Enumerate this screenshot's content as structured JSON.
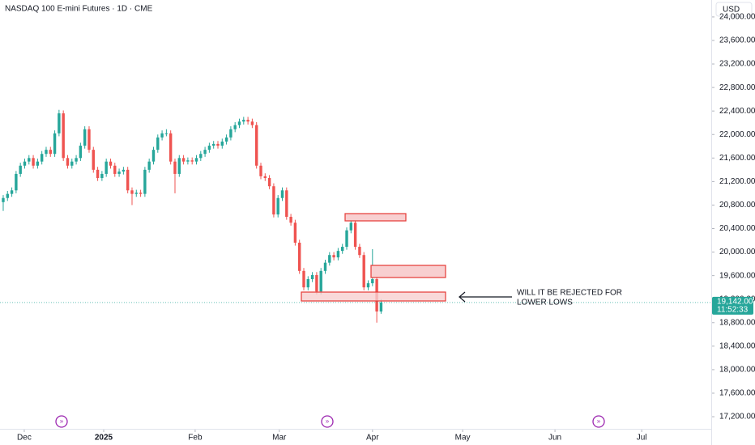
{
  "chart_data": {
    "type": "candlestick",
    "title": "NASDAQ 100 E-mini Futures · 1D · CME",
    "currency": "USD",
    "up_color": "#26a69a",
    "down_color": "#ef5350",
    "open": [
      20850,
      20920,
      20990,
      21050,
      21330,
      21470,
      21540,
      21600,
      21470,
      21540,
      21670,
      21740,
      21670,
      22020,
      22360,
      21600,
      21470,
      21540,
      21600,
      21810,
      22090,
      21740,
      21400,
      21260,
      21330,
      21540,
      21470,
      21330,
      21370,
      21400,
      21050,
      20990,
      21010,
      20990,
      21400,
      21540,
      21740,
      21950,
      22020,
      22020,
      21540,
      21330,
      21600,
      21540,
      21560,
      21540,
      21600,
      21670,
      21740,
      21810,
      21840,
      21810,
      21880,
      21950,
      22090,
      22160,
      22220,
      22250,
      22220,
      22160,
      21470,
      21290,
      21260,
      21120,
      20640,
      20920,
      21050,
      20600,
      20500,
      20160,
      19680,
      19400,
      19540,
      19610,
      19330,
      19680,
      19820,
      19950,
      19910,
      20020,
      20090,
      20370,
      20500,
      20090,
      19950,
      19400,
      19470,
      19540,
      18990
    ],
    "high": [
      20970,
      21040,
      21100,
      21380,
      21520,
      21590,
      21650,
      21650,
      21590,
      21720,
      21790,
      21790,
      22070,
      22420,
      22410,
      21650,
      21590,
      21650,
      21860,
      22140,
      22140,
      21790,
      21450,
      21380,
      21590,
      21590,
      21520,
      21420,
      21450,
      21450,
      21100,
      21060,
      21060,
      21450,
      21590,
      21790,
      22000,
      22070,
      22090,
      22070,
      21590,
      21650,
      21650,
      21610,
      21610,
      21650,
      21720,
      21790,
      21860,
      21890,
      21890,
      21930,
      22000,
      22140,
      22210,
      22270,
      22300,
      22300,
      22270,
      22210,
      21520,
      21340,
      21310,
      21170,
      20970,
      21100,
      21100,
      20650,
      20550,
      20210,
      19730,
      19590,
      19660,
      19660,
      19730,
      19870,
      20000,
      20000,
      20070,
      20140,
      20420,
      20550,
      20550,
      20140,
      20000,
      19520,
      20050,
      19590,
      19200
    ],
    "low": [
      20700,
      20870,
      20940,
      21000,
      21280,
      21420,
      21490,
      21420,
      21420,
      21490,
      21620,
      21620,
      21620,
      21970,
      21550,
      21420,
      21420,
      21490,
      21550,
      21760,
      21690,
      21350,
      21210,
      21210,
      21280,
      21420,
      21280,
      21280,
      21320,
      21000,
      20800,
      20940,
      20940,
      20940,
      21350,
      21490,
      21690,
      21900,
      21970,
      21490,
      21000,
      21280,
      21490,
      21490,
      21490,
      21490,
      21550,
      21620,
      21690,
      21760,
      21760,
      21760,
      21830,
      21900,
      22040,
      22110,
      22170,
      22170,
      22110,
      21420,
      21240,
      21210,
      21070,
      20590,
      20590,
      20870,
      20550,
      20450,
      20110,
      19630,
      19350,
      19350,
      19490,
      19280,
      19280,
      19630,
      19770,
      19860,
      19860,
      19970,
      20040,
      20320,
      20040,
      19900,
      19350,
      19350,
      19420,
      18800,
      18950
    ],
    "close": [
      20920,
      20990,
      21050,
      21330,
      21470,
      21540,
      21600,
      21470,
      21540,
      21670,
      21740,
      21670,
      22020,
      22360,
      21600,
      21470,
      21540,
      21600,
      21810,
      22090,
      21740,
      21400,
      21260,
      21330,
      21540,
      21470,
      21330,
      21370,
      21400,
      21050,
      20990,
      21010,
      20990,
      21400,
      21540,
      21740,
      21950,
      22020,
      22020,
      21540,
      21330,
      21600,
      21540,
      21560,
      21540,
      21600,
      21670,
      21740,
      21810,
      21840,
      21810,
      21880,
      21950,
      22090,
      22160,
      22220,
      22250,
      22220,
      22160,
      21470,
      21290,
      21260,
      21120,
      20640,
      20920,
      21050,
      20600,
      20500,
      20160,
      19680,
      19400,
      19540,
      19610,
      19330,
      19680,
      19820,
      19950,
      19910,
      20020,
      20090,
      20370,
      20500,
      20090,
      19950,
      19400,
      19470,
      19540,
      18990,
      19142
    ],
    "xlim": [
      -0.75,
      164.9
    ],
    "xticks": [
      {
        "value": 4.9,
        "label": "Dec"
      },
      {
        "value": 23.4,
        "label": "2025"
      },
      {
        "value": 44.7,
        "label": "Feb"
      },
      {
        "value": 64.3,
        "label": "Mar"
      },
      {
        "value": 86,
        "label": "Apr"
      },
      {
        "value": 107,
        "label": "May"
      },
      {
        "value": 128.5,
        "label": "Jun"
      },
      {
        "value": 148.7,
        "label": "Jul"
      }
    ],
    "ylim": [
      16994,
      24288
    ],
    "yticks": [
      {
        "value": 17200,
        "label": "17,200.00"
      },
      {
        "value": 17600,
        "label": "17,600.00"
      },
      {
        "value": 18000,
        "label": "18,000.00"
      },
      {
        "value": 18400,
        "label": "18,400.00"
      },
      {
        "value": 18800,
        "label": "18,800.00"
      },
      {
        "value": 19200,
        "label": "19,200.00"
      },
      {
        "value": 19600,
        "label": "19,600.00"
      },
      {
        "value": 20000,
        "label": "20,000.00"
      },
      {
        "value": 20400,
        "label": "20,400.00"
      },
      {
        "value": 20800,
        "label": "20,800.00"
      },
      {
        "value": 21200,
        "label": "21,200.00"
      },
      {
        "value": 21600,
        "label": "21,600.00"
      },
      {
        "value": 22000,
        "label": "22,000.00"
      },
      {
        "value": 22400,
        "label": "22,400.00"
      },
      {
        "value": 22800,
        "label": "22,800.00"
      },
      {
        "value": 23200,
        "label": "23,200.00"
      },
      {
        "value": 23600,
        "label": "23,600.00"
      },
      {
        "value": 24000,
        "label": "24,000.00"
      }
    ],
    "last_price": {
      "value": 19142,
      "label": "19,142.00"
    },
    "countdown": "11:52:33",
    "annotation": [
      "WILL IT BE REJECTED FOR",
      "LOWER LOWS"
    ]
  }
}
